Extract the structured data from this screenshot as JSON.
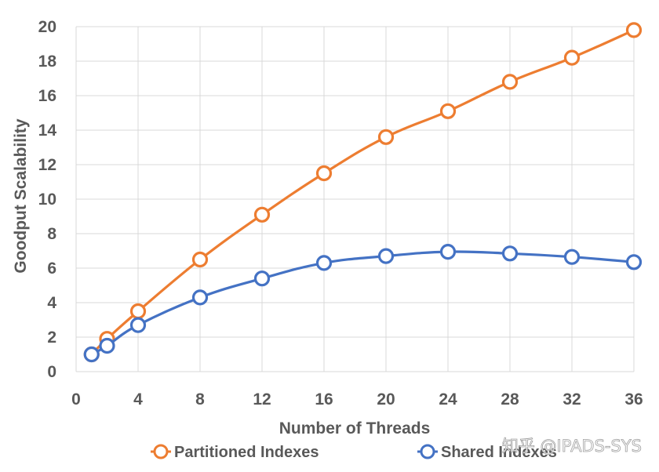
{
  "chart_data": {
    "type": "line",
    "xlabel": "Number of Threads",
    "ylabel": "Goodput Scalability",
    "x_ticks": [
      0,
      4,
      8,
      12,
      16,
      20,
      24,
      28,
      32,
      36
    ],
    "y_ticks": [
      0,
      2,
      4,
      6,
      8,
      10,
      12,
      14,
      16,
      18,
      20
    ],
    "xlim": [
      0,
      36
    ],
    "ylim": [
      0,
      20
    ],
    "grid": true,
    "legend_position": "bottom",
    "series": [
      {
        "name": "Partitioned Indexes",
        "color": "#ED7D31",
        "x": [
          1,
          2,
          4,
          8,
          12,
          16,
          20,
          24,
          28,
          32,
          36
        ],
        "y": [
          1.0,
          1.9,
          3.5,
          6.5,
          9.1,
          11.5,
          13.6,
          15.1,
          16.8,
          18.2,
          19.8
        ]
      },
      {
        "name": "Shared Indexes",
        "color": "#4472C4",
        "x": [
          1,
          2,
          4,
          8,
          12,
          16,
          20,
          24,
          28,
          32,
          36
        ],
        "y": [
          1.0,
          1.5,
          2.7,
          4.3,
          5.4,
          6.3,
          6.7,
          6.95,
          6.85,
          6.65,
          6.35
        ]
      }
    ]
  },
  "watermark": "知乎 @IPADS-SYS",
  "colors": {
    "grid": "#d9d9d9",
    "text": "#595959"
  }
}
